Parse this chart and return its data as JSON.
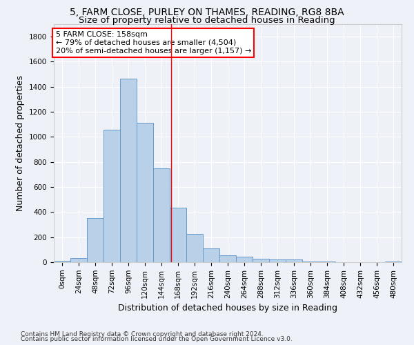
{
  "title1": "5, FARM CLOSE, PURLEY ON THAMES, READING, RG8 8BA",
  "title2": "Size of property relative to detached houses in Reading",
  "xlabel": "Distribution of detached houses by size in Reading",
  "ylabel": "Number of detached properties",
  "bar_labels": [
    "0sqm",
    "24sqm",
    "48sqm",
    "72sqm",
    "96sqm",
    "120sqm",
    "144sqm",
    "168sqm",
    "192sqm",
    "216sqm",
    "240sqm",
    "264sqm",
    "288sqm",
    "312sqm",
    "336sqm",
    "360sqm",
    "384sqm",
    "408sqm",
    "432sqm",
    "456sqm",
    "480sqm"
  ],
  "bar_values": [
    10,
    35,
    355,
    1060,
    1465,
    1115,
    750,
    435,
    225,
    110,
    55,
    45,
    30,
    20,
    20,
    5,
    5,
    0,
    0,
    0,
    5
  ],
  "bar_color": "#b8d0e8",
  "bar_edge_color": "#6699cc",
  "ylim": [
    0,
    1900
  ],
  "yticks": [
    0,
    200,
    400,
    600,
    800,
    1000,
    1200,
    1400,
    1600,
    1800
  ],
  "vline_x": 6.58,
  "vline_color": "red",
  "annotation_line1": "5 FARM CLOSE: 158sqm",
  "annotation_line2": "← 79% of detached houses are smaller (4,504)",
  "annotation_line3": "20% of semi-detached houses are larger (1,157) →",
  "annotation_box_color": "white",
  "annotation_box_edge_color": "red",
  "footer1": "Contains HM Land Registry data © Crown copyright and database right 2024.",
  "footer2": "Contains public sector information licensed under the Open Government Licence v3.0.",
  "background_color": "#eef2f8",
  "grid_color": "#ffffff",
  "title1_fontsize": 10,
  "title2_fontsize": 9.5,
  "axis_label_fontsize": 9,
  "tick_fontsize": 7.5,
  "annotation_fontsize": 8,
  "footer_fontsize": 6.5
}
